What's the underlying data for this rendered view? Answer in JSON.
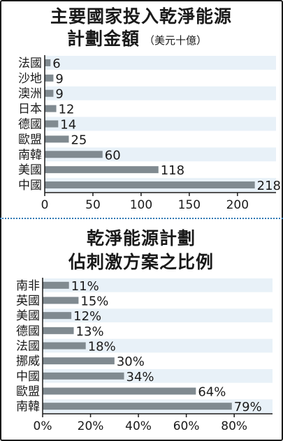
{
  "chart_data": [
    {
      "type": "bar",
      "orientation": "horizontal",
      "title_lines": [
        "主要國家投入乾淨能源",
        "計劃金額"
      ],
      "unit": "（美元十億）",
      "categories": [
        "法國",
        "沙地",
        "澳洲",
        "日本",
        "德國",
        "歐盟",
        "南韓",
        "美國",
        "中國"
      ],
      "values": [
        6,
        9,
        9,
        12,
        14,
        25,
        60,
        118,
        218
      ],
      "value_labels": [
        "6",
        "9",
        "9",
        "12",
        "14",
        "25",
        "60",
        "118",
        "218"
      ],
      "xlim": [
        0,
        240
      ],
      "xticks": [
        0,
        50,
        100,
        150,
        200
      ],
      "xtick_labels": [
        "0",
        "50",
        "100",
        "150",
        "200"
      ],
      "bar_color": "#808a90",
      "stripe_color": "#e8f1f8"
    },
    {
      "type": "bar",
      "orientation": "horizontal",
      "title_lines": [
        "乾淨能源計劃",
        "佔刺激方案之比例"
      ],
      "categories": [
        "南非",
        "英國",
        "美國",
        "德國",
        "法國",
        "挪威",
        "中國",
        "歐盟",
        "南韓"
      ],
      "values": [
        11,
        15,
        12,
        13,
        18,
        30,
        34,
        64,
        79
      ],
      "value_labels": [
        "11%",
        "15%",
        "12%",
        "13%",
        "18%",
        "30%",
        "34%",
        "64%",
        "79%"
      ],
      "xlim": [
        0,
        96
      ],
      "xticks": [
        0,
        20,
        40,
        60,
        80
      ],
      "xtick_labels": [
        "0%",
        "20%",
        "40%",
        "60%",
        "80%"
      ],
      "bar_color": "#808a90",
      "stripe_color": "#e8f1f8"
    }
  ]
}
